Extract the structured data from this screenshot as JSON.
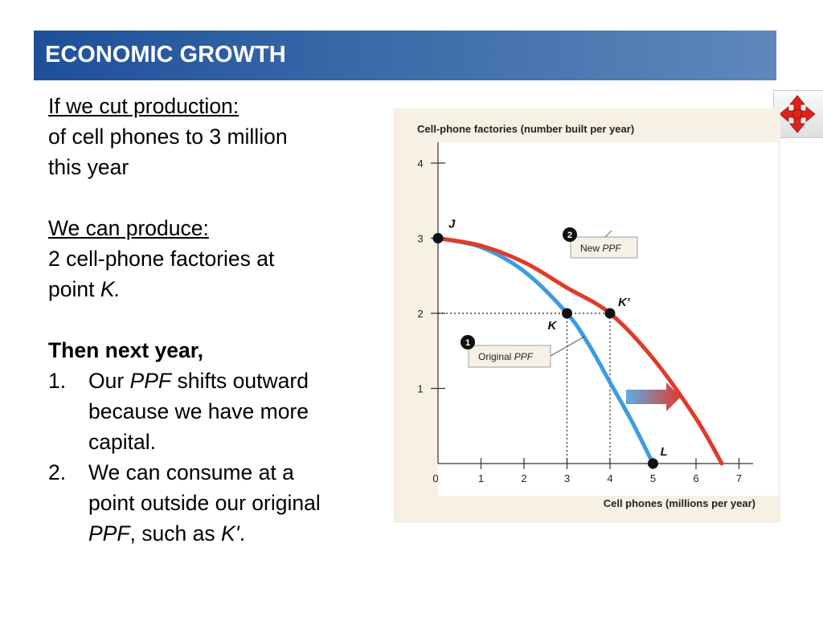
{
  "header": {
    "title": "ECONOMIC GROWTH"
  },
  "nav": {
    "icon": "four-way-arrow-icon"
  },
  "body_text": {
    "cut_heading": "If we cut production:",
    "cut_line1": "of cell phones to 3 million",
    "cut_line2": "this year",
    "produce_heading": "We can produce:",
    "produce_line1": "2 cell-phone factories at",
    "produce_line2_prefix": "point ",
    "produce_line2_point": "K.",
    "next_heading": "Then next year,",
    "items": [
      {
        "num": "1.",
        "line1_prefix": "Our ",
        "line1_term": "PPF",
        "line1_suffix": " shifts outward",
        "line2": "because we have more",
        "line3": "capital."
      },
      {
        "num": "2.",
        "line1": "We can consume at a",
        "line2": "point outside our original",
        "line3_term": "PPF",
        "line3_middle": ", such as ",
        "line3_point": "K'",
        "line3_end": "."
      }
    ]
  },
  "chart_data": {
    "type": "line",
    "ylabel": "Cell-phone factories (number built per year)",
    "xlabel": "Cell phones (millions per year)",
    "xlim": [
      0,
      7
    ],
    "ylim": [
      0,
      4
    ],
    "x_ticks": [
      "0",
      "1",
      "2",
      "3",
      "4",
      "5",
      "6",
      "7"
    ],
    "y_ticks": [
      "1",
      "2",
      "3",
      "4"
    ],
    "series": [
      {
        "name": "Original PPF",
        "color": "#3d9be0",
        "x": [
          0,
          1,
          2,
          3,
          3.5,
          4,
          4.5,
          5
        ],
        "y": [
          3,
          2.88,
          2.56,
          2,
          1.59,
          1.08,
          0.57,
          0
        ]
      },
      {
        "name": "New PPF",
        "color": "#e03a2a",
        "x": [
          0,
          1,
          2,
          3,
          4,
          5,
          6,
          6.6
        ],
        "y": [
          3,
          2.9,
          2.68,
          2.34,
          2,
          1.4,
          0.6,
          0
        ]
      }
    ],
    "points": [
      {
        "label": "J",
        "x": 0,
        "y": 3
      },
      {
        "label": "K",
        "x": 3,
        "y": 2
      },
      {
        "label": "K'",
        "x": 4,
        "y": 2
      },
      {
        "label": "L",
        "x": 5,
        "y": 0
      }
    ],
    "callouts": [
      {
        "number": "1",
        "prefix": "Original ",
        "term": "PPF"
      },
      {
        "number": "2",
        "prefix": "New ",
        "term": "PPF"
      }
    ],
    "grid": false
  }
}
